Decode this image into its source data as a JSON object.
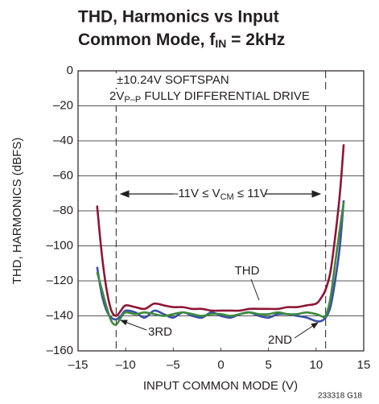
{
  "chart_data": {
    "type": "line",
    "title": {
      "line1": "THD, Harmonics vs Input",
      "line2": "Common Mode, f",
      "line2_sub": "IN",
      "line2_end": " = 2kHz"
    },
    "x_label": "INPUT COMMON MODE (V)",
    "y_label": "THD, HARMONICS (dBFS)",
    "annotations": {
      "softspan": "±10.24V SOFTSPAN",
      "drive": {
        "pre": "2V",
        "sub": "P–P",
        "post": " FULLY DIFFERENTIAL DRIVE"
      },
      "cm_range": {
        "pre": "–11V ≤ V",
        "sub": "CM",
        "post": " ≤ 11V"
      },
      "figure_id": "233318 G18"
    },
    "xlim": [
      -15,
      15
    ],
    "ylim": [
      -160,
      0
    ],
    "xticks": [
      {
        "value": -15,
        "label": "–15"
      },
      {
        "value": -10,
        "label": "–10"
      },
      {
        "value": -5,
        "label": "–5"
      },
      0,
      5,
      10,
      15
    ],
    "yticks": [
      {
        "value": -160,
        "label": "–160"
      },
      {
        "value": -140,
        "label": "–140"
      },
      {
        "value": -120,
        "label": "–120"
      },
      {
        "value": -100,
        "label": "–100"
      },
      {
        "value": -80,
        "label": "–80"
      },
      {
        "value": -60,
        "label": "–60"
      },
      {
        "value": -40,
        "label": "–40"
      },
      {
        "value": -20,
        "label": "–20"
      },
      0
    ],
    "grid": true,
    "markers": [
      -11,
      11
    ],
    "x": [
      -13,
      -12.5,
      -12,
      -11.5,
      -11,
      -10.5,
      -10,
      -9,
      -8,
      -7,
      -6,
      -5,
      -4,
      -3,
      -2,
      -1,
      0,
      1,
      2,
      3,
      4,
      5,
      6,
      7,
      8,
      9,
      10,
      10.5,
      11,
      11.5,
      12,
      12.5,
      12.9
    ],
    "series": [
      {
        "name": "2ND",
        "color": "#3a4fa6",
        "values": [
          -112,
          -128,
          -137,
          -141,
          -142,
          -140,
          -137,
          -138,
          -141,
          -137,
          -139,
          -141,
          -138,
          -140,
          -141,
          -138,
          -140,
          -141,
          -139,
          -138,
          -140,
          -141,
          -139,
          -139,
          -140,
          -141,
          -143,
          -143,
          -141,
          -135,
          -120,
          -100,
          -74
        ]
      },
      {
        "name": "3RD",
        "color": "#3d8b3d",
        "values": [
          -115,
          -125,
          -135,
          -143,
          -145,
          -141,
          -138,
          -139,
          -138,
          -139,
          -140,
          -139,
          -138,
          -139,
          -140,
          -139,
          -139,
          -140,
          -139,
          -138,
          -139,
          -139,
          -138,
          -139,
          -139,
          -138,
          -139,
          -140,
          -140,
          -130,
          -110,
          -90,
          -75
        ]
      },
      {
        "name": "THD",
        "color": "#8e1537",
        "values": [
          -77,
          -105,
          -125,
          -137,
          -140,
          -137,
          -134,
          -135,
          -136,
          -133,
          -134,
          -135,
          -135,
          -136,
          -136,
          -137,
          -137,
          -137,
          -137,
          -136,
          -136,
          -136,
          -136,
          -135,
          -135,
          -134,
          -133,
          -130,
          -125,
          -115,
          -95,
          -70,
          -42
        ]
      }
    ]
  }
}
